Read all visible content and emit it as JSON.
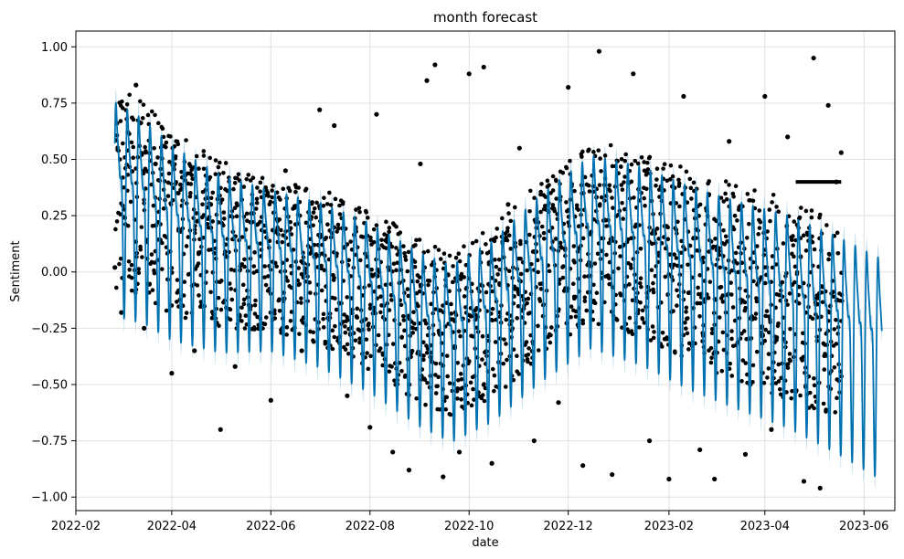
{
  "chart_data": {
    "type": "line",
    "title": "month forecast",
    "xlabel": "date",
    "ylabel": "Sentiment",
    "x_range": [
      "2022-02-01",
      "2023-06-20"
    ],
    "ylim": [
      -1.06,
      1.07
    ],
    "grid": true,
    "legend": "none",
    "x_ticks": [
      {
        "date": "2022-02-01",
        "label": "2022-02"
      },
      {
        "date": "2022-04-01",
        "label": "2022-04"
      },
      {
        "date": "2022-06-01",
        "label": "2022-06"
      },
      {
        "date": "2022-08-01",
        "label": "2022-08"
      },
      {
        "date": "2022-10-01",
        "label": "2022-10"
      },
      {
        "date": "2022-12-01",
        "label": "2022-12"
      },
      {
        "date": "2023-02-01",
        "label": "2023-02"
      },
      {
        "date": "2023-04-01",
        "label": "2023-04"
      },
      {
        "date": "2023-06-01",
        "label": "2023-06"
      }
    ],
    "y_ticks": [
      {
        "value": 1.0,
        "label": "1.00"
      },
      {
        "value": 0.75,
        "label": "0.75"
      },
      {
        "value": 0.5,
        "label": "0.50"
      },
      {
        "value": 0.25,
        "label": "0.25"
      },
      {
        "value": 0.0,
        "label": "0.00"
      },
      {
        "value": -0.25,
        "label": "−0.25"
      },
      {
        "value": -0.5,
        "label": "−0.50"
      },
      {
        "value": -0.75,
        "label": "−0.75"
      },
      {
        "value": -1.0,
        "label": "−1.00"
      }
    ],
    "colors": {
      "forecast_line": "#0072B2",
      "uncertainty_band": "#9ecae1",
      "observations": "#000000",
      "grid": "#e0e0e0"
    },
    "series": [
      {
        "kind": "forecast_yhat",
        "points": [
          {
            "date": "2022-02-25",
            "value": 0.38
          },
          {
            "date": "2022-03-15",
            "value": 0.32
          },
          {
            "date": "2022-04-01",
            "value": 0.22
          },
          {
            "date": "2022-05-01",
            "value": 0.12
          },
          {
            "date": "2022-06-01",
            "value": 0.08
          },
          {
            "date": "2022-07-01",
            "value": 0.02
          },
          {
            "date": "2022-08-01",
            "value": -0.08
          },
          {
            "date": "2022-09-01",
            "value": -0.22
          },
          {
            "date": "2022-09-20",
            "value": -0.28
          },
          {
            "date": "2022-10-15",
            "value": -0.18
          },
          {
            "date": "2022-11-15",
            "value": 0.02
          },
          {
            "date": "2022-12-15",
            "value": 0.18
          },
          {
            "date": "2023-01-15",
            "value": 0.12
          },
          {
            "date": "2023-02-15",
            "value": 0.02
          },
          {
            "date": "2023-03-15",
            "value": -0.05
          },
          {
            "date": "2023-04-15",
            "value": -0.12
          },
          {
            "date": "2023-05-15",
            "value": -0.22
          },
          {
            "date": "2023-06-12",
            "value": -0.33
          }
        ],
        "weekly_amplitude": [
          {
            "date": "2022-02-25",
            "amp": 0.6
          },
          {
            "date": "2022-06-01",
            "amp": 0.45
          },
          {
            "date": "2022-10-01",
            "amp": 0.5
          },
          {
            "date": "2023-01-01",
            "amp": 0.55
          },
          {
            "date": "2023-06-12",
            "amp": 0.62
          }
        ]
      },
      {
        "kind": "observations",
        "points": [
          {
            "date": "2022-02-25",
            "value": 0.02
          },
          {
            "date": "2022-03-01",
            "value": -0.18
          },
          {
            "date": "2022-03-05",
            "value": 0.62
          },
          {
            "date": "2022-03-10",
            "value": 0.83
          },
          {
            "date": "2022-03-15",
            "value": -0.25
          },
          {
            "date": "2022-03-22",
            "value": 0.48
          },
          {
            "date": "2022-04-01",
            "value": -0.45
          },
          {
            "date": "2022-04-05",
            "value": 0.35
          },
          {
            "date": "2022-04-15",
            "value": -0.35
          },
          {
            "date": "2022-04-25",
            "value": 0.3
          },
          {
            "date": "2022-05-01",
            "value": -0.7
          },
          {
            "date": "2022-05-10",
            "value": -0.42
          },
          {
            "date": "2022-05-20",
            "value": 0.26
          },
          {
            "date": "2022-06-01",
            "value": -0.57
          },
          {
            "date": "2022-06-10",
            "value": 0.45
          },
          {
            "date": "2022-06-20",
            "value": -0.35
          },
          {
            "date": "2022-07-01",
            "value": 0.72
          },
          {
            "date": "2022-07-10",
            "value": 0.65
          },
          {
            "date": "2022-07-18",
            "value": -0.55
          },
          {
            "date": "2022-08-01",
            "value": -0.69
          },
          {
            "date": "2022-08-05",
            "value": 0.7
          },
          {
            "date": "2022-08-15",
            "value": -0.8
          },
          {
            "date": "2022-08-25",
            "value": -0.88
          },
          {
            "date": "2022-09-01",
            "value": 0.48
          },
          {
            "date": "2022-09-05",
            "value": 0.85
          },
          {
            "date": "2022-09-10",
            "value": 0.92
          },
          {
            "date": "2022-09-15",
            "value": -0.91
          },
          {
            "date": "2022-09-25",
            "value": -0.8
          },
          {
            "date": "2022-10-01",
            "value": 0.88
          },
          {
            "date": "2022-10-10",
            "value": 0.91
          },
          {
            "date": "2022-10-15",
            "value": -0.85
          },
          {
            "date": "2022-10-25",
            "value": 0.3
          },
          {
            "date": "2022-11-01",
            "value": 0.55
          },
          {
            "date": "2022-11-10",
            "value": -0.75
          },
          {
            "date": "2022-11-25",
            "value": -0.58
          },
          {
            "date": "2022-12-01",
            "value": 0.82
          },
          {
            "date": "2022-12-10",
            "value": -0.86
          },
          {
            "date": "2022-12-20",
            "value": 0.98
          },
          {
            "date": "2022-12-28",
            "value": -0.9
          },
          {
            "date": "2023-01-10",
            "value": 0.88
          },
          {
            "date": "2023-01-20",
            "value": -0.75
          },
          {
            "date": "2023-02-01",
            "value": -0.92
          },
          {
            "date": "2023-02-10",
            "value": 0.78
          },
          {
            "date": "2023-02-20",
            "value": -0.79
          },
          {
            "date": "2023-03-01",
            "value": -0.92
          },
          {
            "date": "2023-03-10",
            "value": 0.58
          },
          {
            "date": "2023-03-20",
            "value": -0.81
          },
          {
            "date": "2023-04-01",
            "value": 0.78
          },
          {
            "date": "2023-04-05",
            "value": -0.7
          },
          {
            "date": "2023-04-15",
            "value": 0.6
          },
          {
            "date": "2023-04-25",
            "value": -0.93
          },
          {
            "date": "2023-05-01",
            "value": 0.95
          },
          {
            "date": "2023-05-05",
            "value": -0.96
          },
          {
            "date": "2023-05-10",
            "value": 0.74
          },
          {
            "date": "2023-05-15",
            "value": 0.4
          },
          {
            "date": "2023-05-18",
            "value": 0.53
          }
        ],
        "flat_segment": {
          "start": "2023-04-20",
          "end": "2023-05-18",
          "value": 0.4
        }
      }
    ]
  }
}
